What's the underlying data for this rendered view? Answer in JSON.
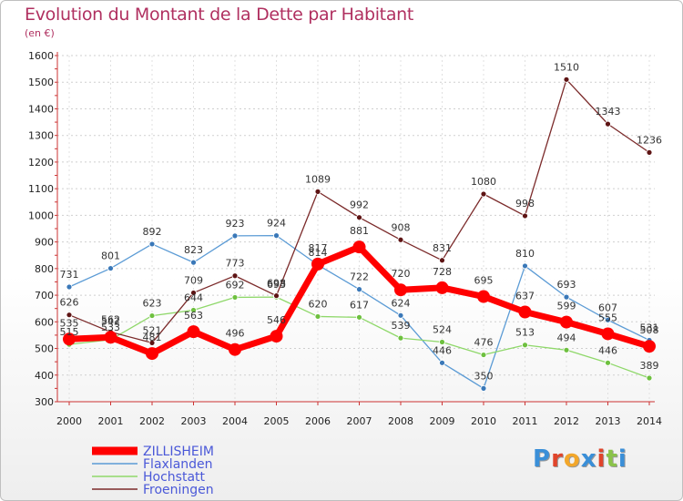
{
  "chart_data": {
    "type": "line",
    "title": "Evolution du Montant de la Dette par Habitant",
    "subtitle": "(en €)",
    "xlabel": "",
    "ylabel": "",
    "categories": [
      "2000",
      "2001",
      "2002",
      "2003",
      "2004",
      "2005",
      "2006",
      "2007",
      "2008",
      "2009",
      "2010",
      "2011",
      "2012",
      "2013",
      "2014"
    ],
    "ylim": [
      300,
      1600
    ],
    "yticks": [
      300,
      400,
      500,
      600,
      700,
      800,
      900,
      1000,
      1100,
      1200,
      1300,
      1400,
      1500,
      1600
    ],
    "grid": "horizontal dashed",
    "legend_position": "bottom-left",
    "series": [
      {
        "name": "Flaxlanden",
        "color": "#5b9bd5",
        "markerColor": "#3a78b8",
        "width": 1.3,
        "radius": 3,
        "values": [
          731,
          801,
          892,
          823,
          923,
          924,
          814,
          722,
          624,
          446,
          350,
          810,
          693,
          607,
          531
        ]
      },
      {
        "name": "Hochstatt",
        "color": "#8fd86a",
        "markerColor": "#6ec03f",
        "width": 1.3,
        "radius": 3,
        "values": [
          515,
          533,
          623,
          644,
          692,
          693,
          620,
          617,
          539,
          524,
          476,
          513,
          494,
          446,
          389
        ]
      },
      {
        "name": "Froeningen",
        "color": "#7b2a2a",
        "markerColor": "#5e1414",
        "width": 1.3,
        "radius": 3,
        "values": [
          626,
          562,
          521,
          709,
          773,
          698,
          1089,
          992,
          908,
          831,
          1080,
          998,
          1510,
          1343,
          1236
        ]
      },
      {
        "name": "ZILLISHEIM",
        "color": "#ff0000",
        "markerColor": "#ff0000",
        "width": 7,
        "radius": 7,
        "values": [
          535,
          542,
          481,
          563,
          496,
          546,
          817,
          881,
          720,
          728,
          695,
          637,
          599,
          555,
          508
        ]
      }
    ],
    "legend": [
      {
        "name": "ZILLISHEIM",
        "color": "#ff0000"
      },
      {
        "name": "Flaxlanden",
        "color": "#5b9bd5"
      },
      {
        "name": "Hochstatt",
        "color": "#8fd86a"
      },
      {
        "name": "Froeningen",
        "color": "#7b2a2a"
      }
    ]
  },
  "logo": {
    "text": "Proxiti",
    "colors": [
      "#3a8fd8",
      "#e0452b",
      "#f2a72b",
      "#3a8fd8",
      "#e0452b",
      "#8bc34a",
      "#3a8fd8"
    ]
  }
}
